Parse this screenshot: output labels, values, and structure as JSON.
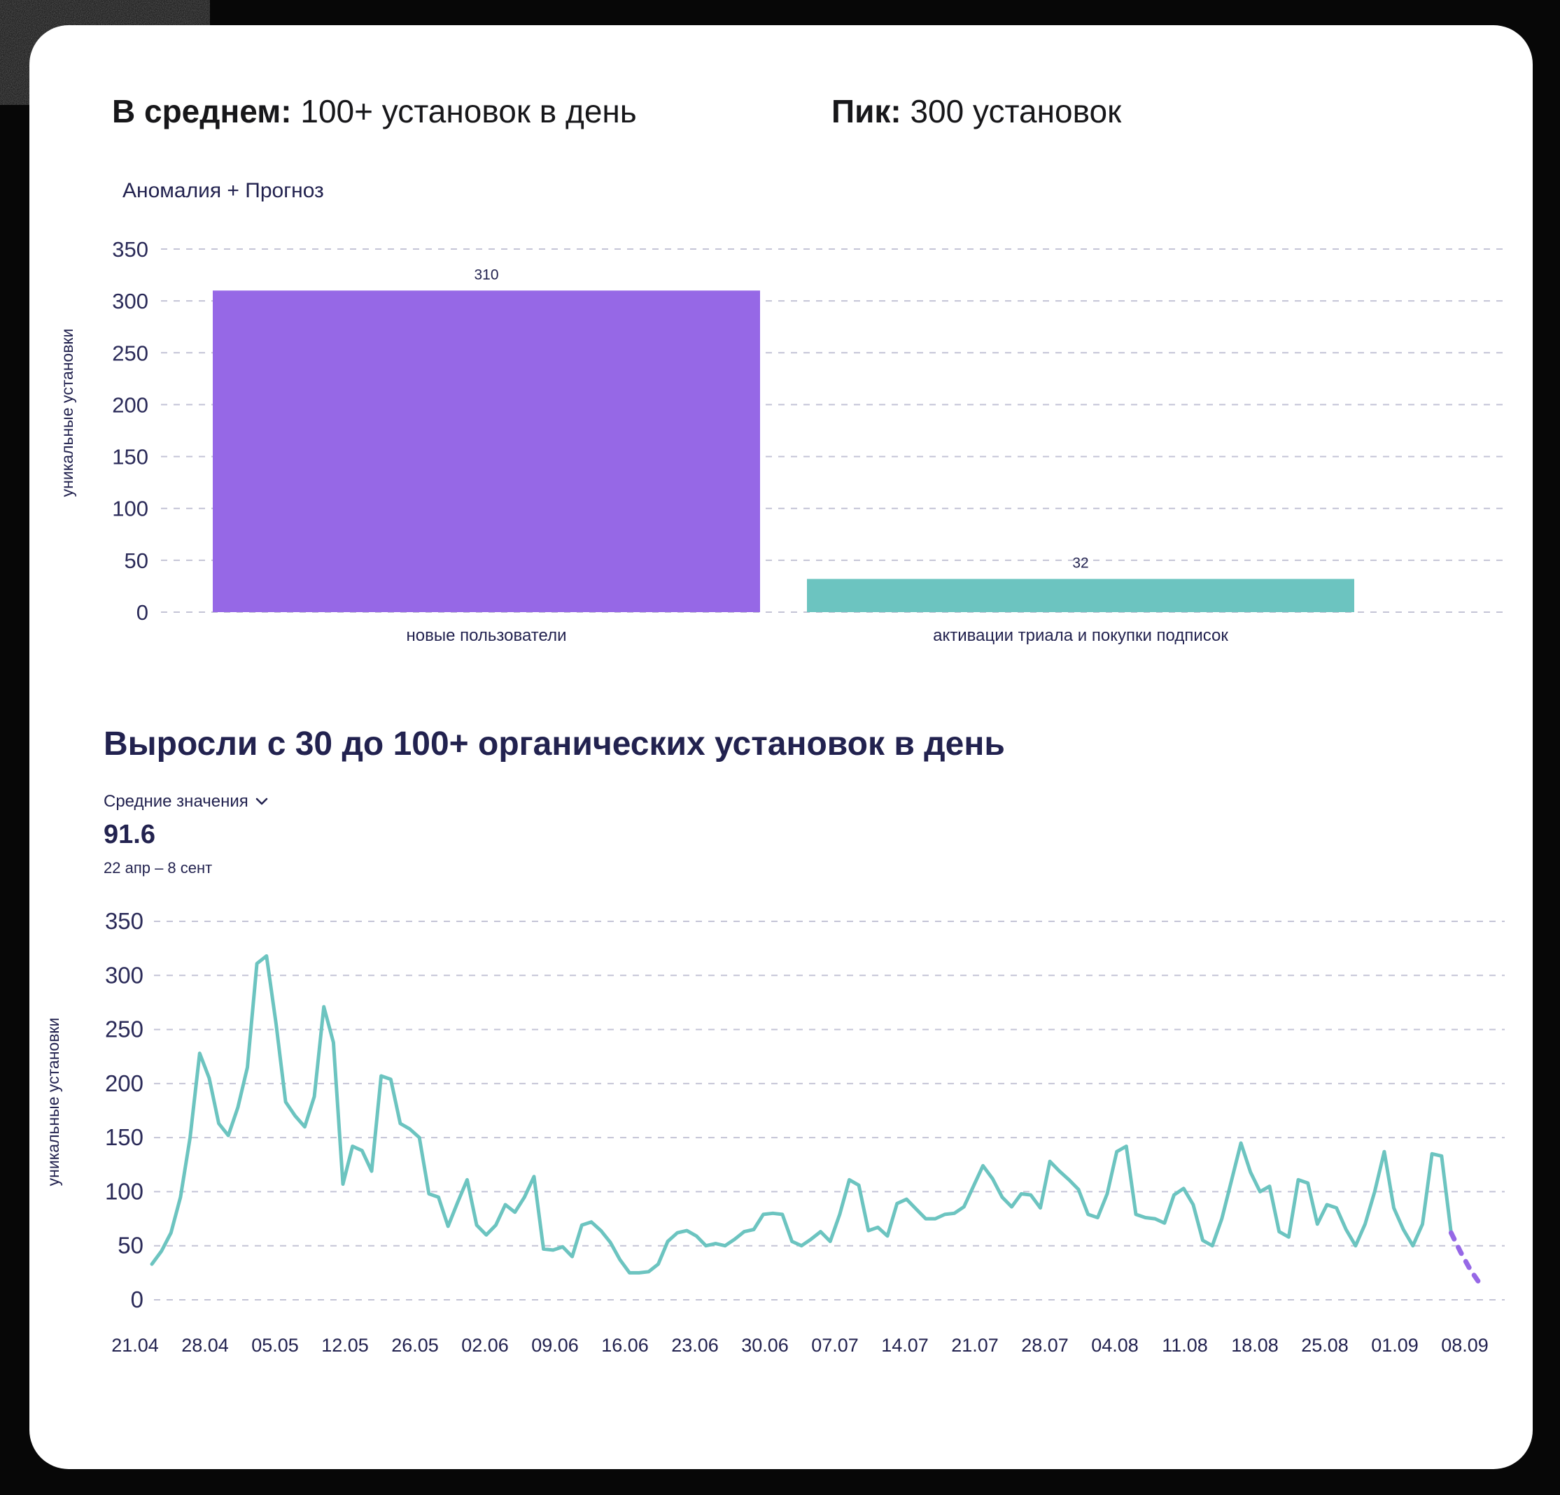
{
  "window": {
    "page_bg": "#070707",
    "card_bg": "#ffffff"
  },
  "colors": {
    "purple": "#9668e6",
    "teal": "#6cc4c0",
    "navy": "#22224f",
    "header_text": "#17171a",
    "tick_text": "#2a2a58",
    "grid": "#c4c4d6"
  },
  "header": {
    "avg_label": "В среднем:",
    "avg_rest": " 100+ установок в день",
    "peak_label": "Пик:",
    "peak_rest": " 300 установок"
  },
  "chart_data": [
    {
      "type": "bar",
      "title": "Аномалия + Прогноз",
      "ylabel": "уникальные установки",
      "ylim": [
        0,
        350
      ],
      "yticks": [
        0,
        50,
        100,
        150,
        200,
        250,
        300,
        350
      ],
      "grid": "horizontal-dashed",
      "legend": "none",
      "categories": [
        "новые пользователи",
        "активации триала и покупки подписок"
      ],
      "values": [
        310,
        32
      ],
      "value_labels": [
        "310",
        "32"
      ],
      "bar_colors": [
        "#9668e6",
        "#6cc4c0"
      ]
    },
    {
      "type": "line",
      "title": "Выросли с 30 до 100+ органических установок в день",
      "controls": {
        "dropdown_label": "Средние значения",
        "average_value": "91.6",
        "date_range": "22 апр – 8 сент"
      },
      "ylabel": "уникальные установки",
      "ylim": [
        0,
        350
      ],
      "yticks": [
        0,
        50,
        100,
        150,
        200,
        250,
        300,
        350
      ],
      "grid": "horizontal-dashed",
      "legend": "none",
      "x_tick_labels": [
        "21.04",
        "28.04",
        "05.05",
        "12.05",
        "26.05",
        "02.06",
        "09.06",
        "16.06",
        "23.06",
        "30.06",
        "07.07",
        "14.07",
        "21.07",
        "28.07",
        "04.08",
        "11.08",
        "18.08",
        "25.08",
        "01.09",
        "08.09"
      ],
      "series": [
        {
          "name": "уникальные установки",
          "color": "#6cc4c0",
          "style": "solid",
          "values": [
            33,
            45,
            62,
            95,
            150,
            228,
            205,
            163,
            152,
            178,
            215,
            311,
            318,
            255,
            183,
            170,
            160,
            188,
            271,
            238,
            107,
            142,
            138,
            119,
            207,
            204,
            163,
            158,
            150,
            98,
            95,
            68,
            90,
            111,
            69,
            60,
            69,
            88,
            81,
            95,
            114,
            47,
            46,
            49,
            40,
            69,
            72,
            64,
            53,
            37,
            25,
            25,
            26,
            33,
            54,
            62,
            64,
            59,
            50,
            52,
            50,
            56,
            63,
            65,
            79,
            80,
            79,
            54,
            50,
            56,
            63,
            54,
            79,
            111,
            106,
            64,
            67,
            59,
            89,
            93,
            84,
            75,
            75,
            79,
            80,
            86,
            105,
            124,
            112,
            95,
            86,
            98,
            97,
            85,
            128,
            119,
            111,
            102,
            79,
            76,
            98,
            137,
            142,
            79,
            76,
            75,
            71,
            97,
            103,
            88,
            55,
            50,
            75,
            110,
            145,
            118,
            100,
            105,
            63,
            58,
            111,
            108,
            70,
            88,
            85,
            65,
            50,
            70,
            100,
            137,
            85,
            65,
            50,
            70,
            135,
            133,
            62
          ]
        },
        {
          "name": "прогноз",
          "color": "#9668e6",
          "style": "dashed",
          "values": [
            44,
            28,
            15
          ]
        }
      ]
    }
  ]
}
